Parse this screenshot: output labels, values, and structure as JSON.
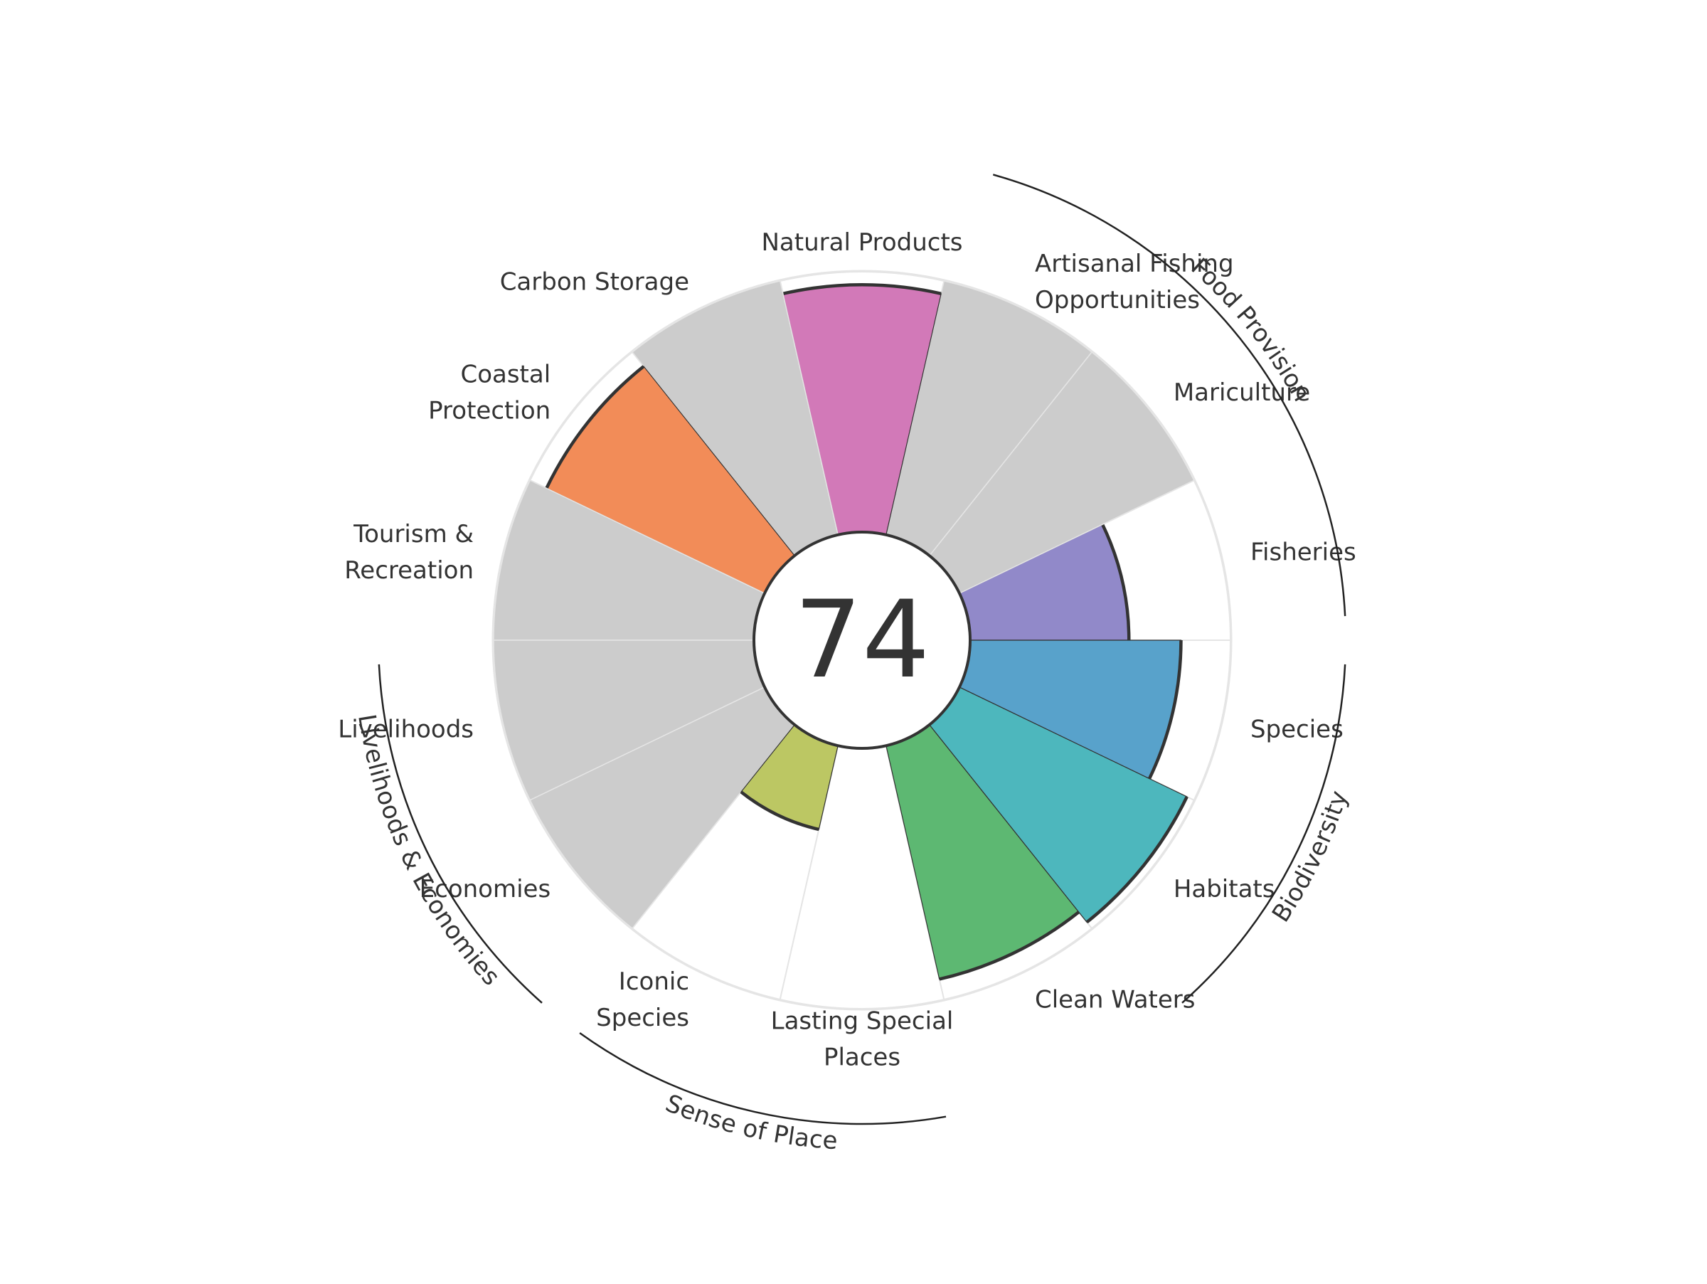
{
  "chart_data": {
    "type": "polar-bar",
    "overall_score": "74",
    "max_value": 100,
    "goals": [
      {
        "label": [
          "Fisheries"
        ],
        "value": 61,
        "color": "#9189c9",
        "missing": false
      },
      {
        "label": [
          "Mariculture"
        ],
        "value": 0,
        "color": "#cccccc",
        "missing": true
      },
      {
        "label": [
          "Artisanal Fishing",
          "Opportunities"
        ],
        "value": 0,
        "color": "#cccccc",
        "missing": true
      },
      {
        "label": [
          "Natural Products"
        ],
        "value": 95,
        "color": "#d279b8",
        "missing": false
      },
      {
        "label": [
          "Carbon Storage"
        ],
        "value": 0,
        "color": "#cccccc",
        "missing": true
      },
      {
        "label": [
          "Coastal",
          "Protection"
        ],
        "value": 93,
        "color": "#f28c58",
        "missing": false
      },
      {
        "label": [
          "Tourism &",
          "Recreation"
        ],
        "value": 0,
        "color": "#cccccc",
        "missing": true
      },
      {
        "label": [
          "Livelihoods"
        ],
        "value": 0,
        "color": "#cccccc",
        "missing": true
      },
      {
        "label": [
          "Economies"
        ],
        "value": 0,
        "color": "#cccccc",
        "missing": true
      },
      {
        "label": [
          "Iconic",
          "Species"
        ],
        "value": 33,
        "color": "#bcc763",
        "missing": false
      },
      {
        "label": [
          "Lasting Special",
          "Places"
        ],
        "value": 0,
        "color": "#ffffff",
        "missing": false
      },
      {
        "label": [
          "Clean Waters"
        ],
        "value": 92,
        "color": "#5db872",
        "missing": false
      },
      {
        "label": [
          "Habitats"
        ],
        "value": 97,
        "color": "#4db7bd",
        "missing": false
      },
      {
        "label": [
          "Species"
        ],
        "value": 81,
        "color": "#58a2cb",
        "missing": false
      }
    ],
    "groups": [
      {
        "label": "Food Provision",
        "start": 0,
        "end": 2
      },
      {
        "label": "Biodiversity",
        "start": 12,
        "end": 13
      },
      {
        "label": "Sense of Place",
        "start": 9,
        "end": 10
      },
      {
        "label": "Livelihoods & Economies",
        "start": 7,
        "end": 8
      }
    ]
  }
}
